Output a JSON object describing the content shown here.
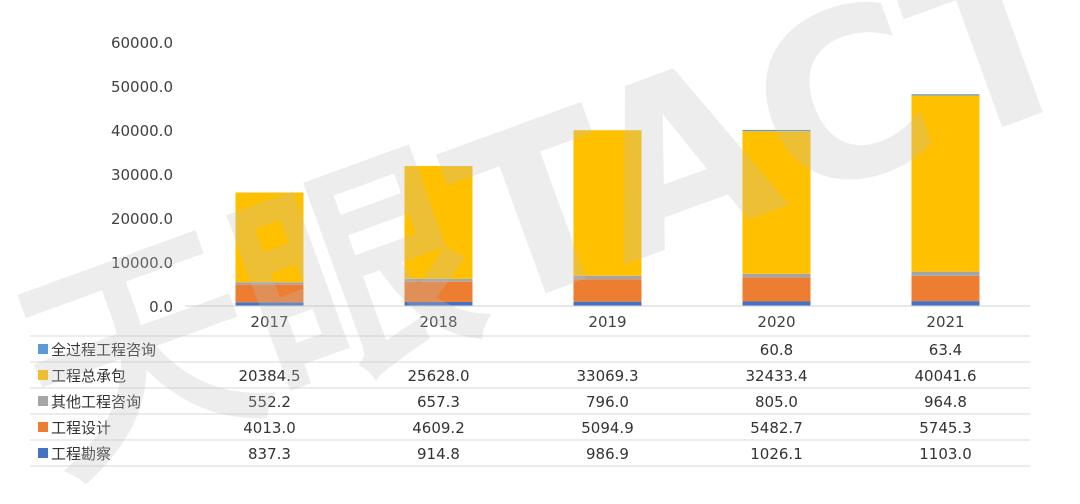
{
  "chart_data": {
    "type": "bar",
    "stacked": true,
    "title": "",
    "xlabel": "",
    "ylabel": "",
    "categories": [
      "2017",
      "2018",
      "2019",
      "2020",
      "2021"
    ],
    "ylim": [
      0,
      60000
    ],
    "yticks": [
      "0.0",
      "10000.0",
      "20000.0",
      "30000.0",
      "40000.0",
      "50000.0",
      "60000.0"
    ],
    "grid": false,
    "legend": "bottom-table",
    "stack_order": [
      "工程勘察",
      "工程设计",
      "其他工程咨询",
      "工程总承包",
      "全过程工程咨询"
    ],
    "table_rows": [
      {
        "name": "全过程工程咨询",
        "color": "#5B9BD5",
        "values": [
          null,
          null,
          null,
          60.8,
          63.4
        ],
        "labels": [
          "",
          "",
          "",
          "60.8",
          "63.4"
        ]
      },
      {
        "name": "工程总承包",
        "color": "#FFC000",
        "values": [
          20384.5,
          25628.0,
          33069.3,
          32433.4,
          40041.6
        ],
        "labels": [
          "20384.5",
          "25628.0",
          "33069.3",
          "32433.4",
          "40041.6"
        ]
      },
      {
        "name": "其他工程咨询",
        "color": "#A5A5A5",
        "values": [
          552.2,
          657.3,
          796.0,
          805.0,
          964.8
        ],
        "labels": [
          "552.2",
          "657.3",
          "796.0",
          "805.0",
          "964.8"
        ]
      },
      {
        "name": "工程设计",
        "color": "#ED7D31",
        "values": [
          4013.0,
          4609.2,
          5094.9,
          5482.7,
          5745.3
        ],
        "labels": [
          "4013.0",
          "4609.2",
          "5094.9",
          "5482.7",
          "5745.3"
        ]
      },
      {
        "name": "工程勘察",
        "color": "#4472C4",
        "values": [
          837.3,
          914.8,
          986.9,
          1026.1,
          1103.0
        ],
        "labels": [
          "837.3",
          "914.8",
          "986.9",
          "1026.1",
          "1103.0"
        ]
      }
    ]
  },
  "watermark": {
    "text": "天眼TACTER",
    "color": "#bdbdbd"
  }
}
